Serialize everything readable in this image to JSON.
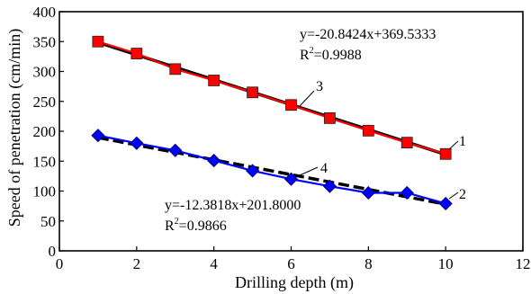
{
  "chart_data": {
    "type": "line",
    "xlabel": "Drilling depth (m)",
    "ylabel": "Speed of penetration (cm/min)",
    "xlim": [
      0,
      12
    ],
    "ylim": [
      0,
      400
    ],
    "xticks": [
      0,
      2,
      4,
      6,
      8,
      10,
      12
    ],
    "yticks": [
      0,
      50,
      100,
      150,
      200,
      250,
      300,
      350,
      400
    ],
    "grid": false,
    "x": [
      1,
      2,
      3,
      4,
      5,
      6,
      7,
      8,
      9,
      10
    ],
    "series": [
      {
        "name": "1",
        "color": "#ff0000",
        "marker": "square",
        "values": [
          350,
          330,
          304,
          285,
          265,
          244,
          222,
          201,
          181,
          162
        ]
      },
      {
        "name": "2",
        "color": "#0000ff",
        "marker": "diamond",
        "values": [
          193,
          180,
          168,
          151,
          134,
          120,
          108,
          97,
          97,
          79
        ]
      },
      {
        "name": "3",
        "color": "#000000",
        "style": "solid",
        "fit": {
          "slope": -20.8424,
          "intercept": 369.5333,
          "x_range": [
            1,
            10
          ]
        }
      },
      {
        "name": "4",
        "color": "#000000",
        "style": "dashed",
        "fit": {
          "slope": -12.3818,
          "intercept": 201.8,
          "x_range": [
            1,
            10
          ]
        }
      }
    ],
    "annotations": [
      {
        "id": "eq-red",
        "equation": "y=-20.8424x+369.5333",
        "r2_prefix": "R",
        "r2_sup": "2",
        "r2_value": "=0.9988"
      },
      {
        "id": "eq-blue",
        "equation": "y=-12.3818x+201.8000",
        "r2_prefix": "R",
        "r2_sup": "2",
        "r2_value": "=0.9866"
      }
    ]
  }
}
